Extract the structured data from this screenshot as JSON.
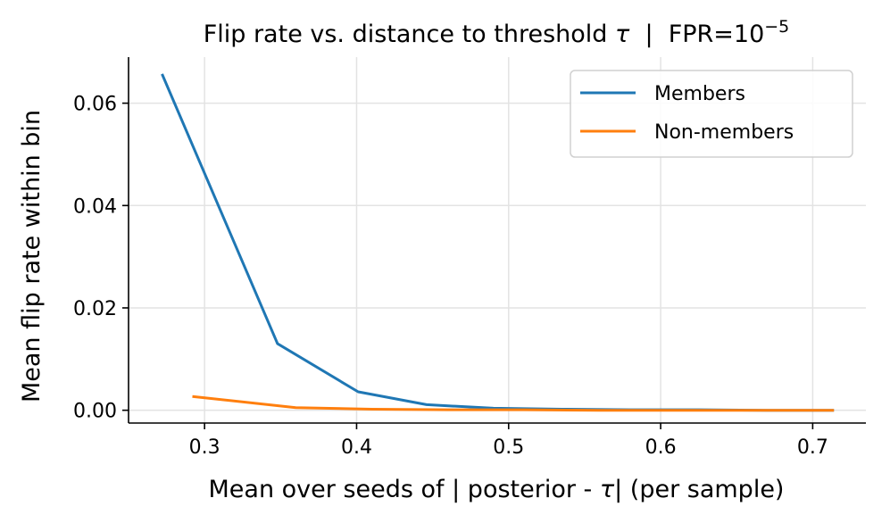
{
  "chart_data": {
    "type": "line",
    "title": {
      "prefix": "Flip rate vs. distance to threshold ",
      "tau": "τ",
      "middle": "  |  FPR=10",
      "exponent": "−5"
    },
    "xlabel": {
      "prefix": "Mean over seeds of | posterior - ",
      "tau": "τ",
      "suffix": "| (per sample)"
    },
    "ylabel": "Mean flip rate within bin",
    "xlim": [
      0.25,
      0.735
    ],
    "ylim": [
      -0.0025,
      0.069
    ],
    "x_ticks": [
      0.3,
      0.4,
      0.5,
      0.6,
      0.7
    ],
    "x_tick_labels": [
      "0.3",
      "0.4",
      "0.5",
      "0.6",
      "0.7"
    ],
    "y_ticks": [
      0.0,
      0.02,
      0.04,
      0.06
    ],
    "y_tick_labels": [
      "0.00",
      "0.02",
      "0.04",
      "0.06"
    ],
    "grid": true,
    "legend_position": "top-right",
    "series": [
      {
        "name": "Members",
        "color": "#1f77b4",
        "x": [
          0.272,
          0.348,
          0.401,
          0.446,
          0.49,
          0.535,
          0.58,
          0.625,
          0.67,
          0.714
        ],
        "y": [
          0.0657,
          0.013,
          0.0036,
          0.0011,
          0.0004,
          0.0002,
          0.0001,
          0.0001,
          0.0,
          0.0
        ]
      },
      {
        "name": "Non-members",
        "color": "#ff7f0e",
        "x": [
          0.292,
          0.36,
          0.41,
          0.46,
          0.51,
          0.56,
          0.61,
          0.66,
          0.714
        ],
        "y": [
          0.0027,
          0.0005,
          0.0002,
          0.0001,
          0.0001,
          0.0,
          0.0,
          0.0,
          0.0
        ]
      }
    ]
  }
}
